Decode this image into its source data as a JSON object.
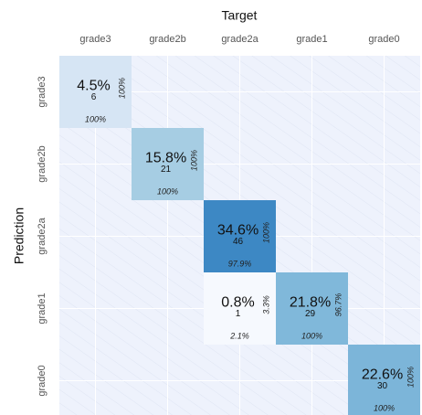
{
  "chart_data": {
    "type": "confusion-matrix",
    "x_label": "Target",
    "y_label": "Prediction",
    "categories": [
      "grade3",
      "grade2b",
      "grade2a",
      "grade1",
      "grade0"
    ],
    "cells": [
      {
        "target": "grade3",
        "prediction": "grade3",
        "value": 4.5,
        "value_label": "4.5%",
        "count": 6,
        "row_percent": {
          "value": 100,
          "label": "100%"
        },
        "col_percent": {
          "value": 100,
          "label": "100%"
        },
        "color": "#d6e5f4"
      },
      {
        "target": "grade2b",
        "prediction": "grade2b",
        "value": 15.8,
        "value_label": "15.8%",
        "count": 21,
        "row_percent": {
          "value": 100,
          "label": "100%"
        },
        "col_percent": {
          "value": 100,
          "label": "100%"
        },
        "color": "#a6cde3"
      },
      {
        "target": "grade2a",
        "prediction": "grade2a",
        "value": 34.6,
        "value_label": "34.6%",
        "count": 46,
        "row_percent": {
          "value": 100,
          "label": "100%"
        },
        "col_percent": {
          "value": 97.9,
          "label": "97.9%"
        },
        "color": "#3d88c4"
      },
      {
        "target": "grade2a",
        "prediction": "grade1",
        "value": 0.8,
        "value_label": "0.8%",
        "count": 1,
        "row_percent": {
          "value": 3.3,
          "label": "3.3%"
        },
        "col_percent": {
          "value": 2.1,
          "label": "2.1%"
        },
        "color": "#f6f9fe"
      },
      {
        "target": "grade1",
        "prediction": "grade1",
        "value": 21.8,
        "value_label": "21.8%",
        "count": 29,
        "row_percent": {
          "value": 96.7,
          "label": "96.7%"
        },
        "col_percent": {
          "value": 100,
          "label": "100%"
        },
        "color": "#80b8da"
      },
      {
        "target": "grade0",
        "prediction": "grade0",
        "value": 22.6,
        "value_label": "22.6%",
        "count": 30,
        "row_percent": {
          "value": 100,
          "label": "100%"
        },
        "col_percent": {
          "value": 100,
          "label": "100%"
        },
        "color": "#7cb5d9"
      }
    ],
    "background": "#eef2fc"
  }
}
